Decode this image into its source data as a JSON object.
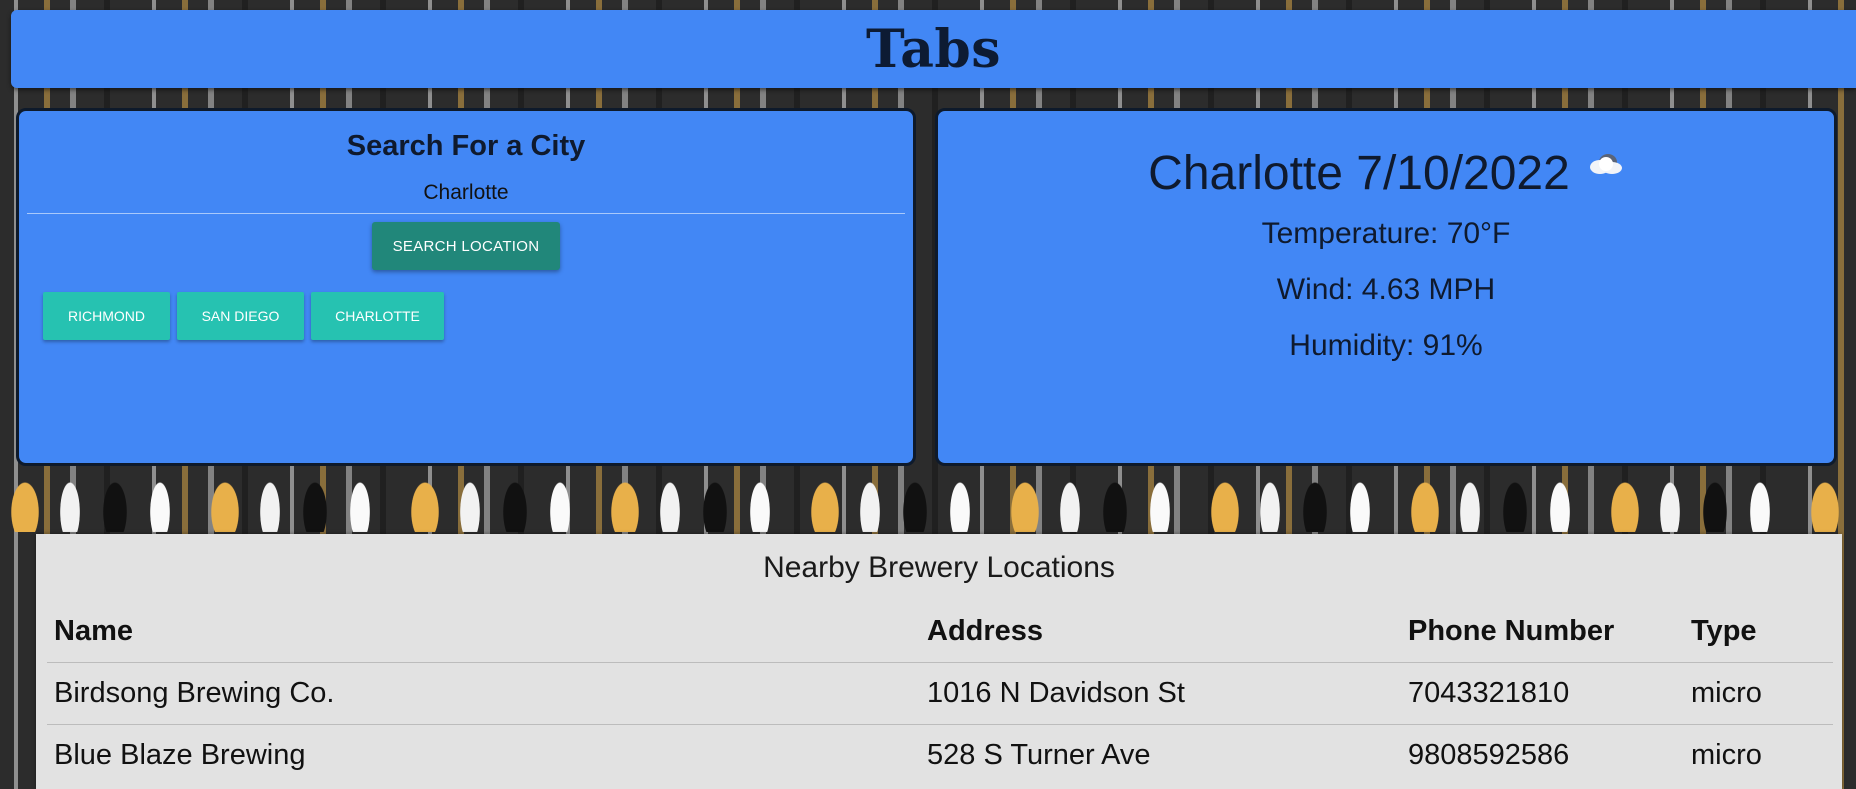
{
  "header": {
    "title": "Tabs"
  },
  "search": {
    "title": "Search For a City",
    "input_value": "Charlotte",
    "button_label": "SEARCH LOCATION",
    "history": [
      "RICHMOND",
      "SAN DIEGO",
      "CHARLOTTE"
    ]
  },
  "weather": {
    "title": "Charlotte 7/10/2022",
    "icon": "cloud-icon",
    "temperature": "Temperature: 70°F",
    "wind": "Wind: 4.63 MPH",
    "humidity": "Humidity: 91%"
  },
  "breweries": {
    "title": "Nearby Brewery Locations",
    "columns": [
      "Name",
      "Address",
      "Phone Number",
      "Type"
    ],
    "rows": [
      [
        "Birdsong Brewing Co.",
        "1016 N Davidson St",
        "7043321810",
        "micro"
      ],
      [
        "Blue Blaze Brewing",
        "528 S Turner Ave",
        "9808592586",
        "micro"
      ]
    ]
  },
  "colors": {
    "panel_blue": "#4287f5",
    "search_button": "#21877a",
    "history_button": "#26c2b1",
    "table_bg": "#e2e2e2"
  }
}
